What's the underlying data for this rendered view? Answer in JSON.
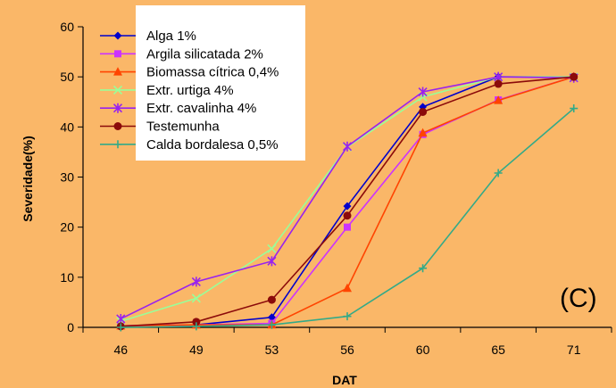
{
  "colors": {
    "background": "#FAB768",
    "legend_bg": "#FFFFFF",
    "axis": "#000000"
  },
  "chart_data": {
    "type": "line",
    "panel_label": "(C)",
    "xlabel": "DAT",
    "ylabel": "Severidade(%)",
    "categories": [
      "46",
      "49",
      "53",
      "56",
      "60",
      "65",
      "71"
    ],
    "ylim": [
      0,
      60
    ],
    "yticks": [
      0,
      10,
      20,
      30,
      40,
      50,
      60
    ],
    "grid": false,
    "legend": "top-left, inside plot",
    "series": [
      {
        "name": "Alga 1%",
        "color": "#0000CC",
        "marker": "diamond",
        "values": [
          0.3,
          0.5,
          2.0,
          24.2,
          44.0,
          50.0,
          50.0
        ]
      },
      {
        "name": "Argila silicatada 2%",
        "color": "#CC33FF",
        "marker": "square",
        "values": [
          0.3,
          0.5,
          0.8,
          20.0,
          38.5,
          45.4,
          50.0
        ]
      },
      {
        "name": "Biomassa cítrica 0,4%",
        "color": "#FF4400",
        "marker": "triangle",
        "values": [
          0.3,
          0.5,
          0.5,
          7.8,
          38.8,
          45.3,
          50.0
        ]
      },
      {
        "name": "Extr. urtiga 4%",
        "color": "#99FF99",
        "marker": "x",
        "values": [
          1.2,
          5.8,
          15.7,
          36.0,
          46.0,
          50.0,
          50.0
        ]
      },
      {
        "name": "Extr. cavalinha 4%",
        "color": "#9922EE",
        "marker": "asterisk",
        "values": [
          1.7,
          9.1,
          13.2,
          36.1,
          47.0,
          50.0,
          49.8
        ]
      },
      {
        "name": "Testemunha",
        "color": "#8B0A0A",
        "marker": "circle",
        "values": [
          0.2,
          1.1,
          5.5,
          22.3,
          43.0,
          48.6,
          50.0
        ]
      },
      {
        "name": "Calda bordalesa 0,5%",
        "color": "#33AA88",
        "marker": "plus",
        "values": [
          0.0,
          0.2,
          0.5,
          2.2,
          11.8,
          30.8,
          43.7
        ]
      }
    ]
  }
}
